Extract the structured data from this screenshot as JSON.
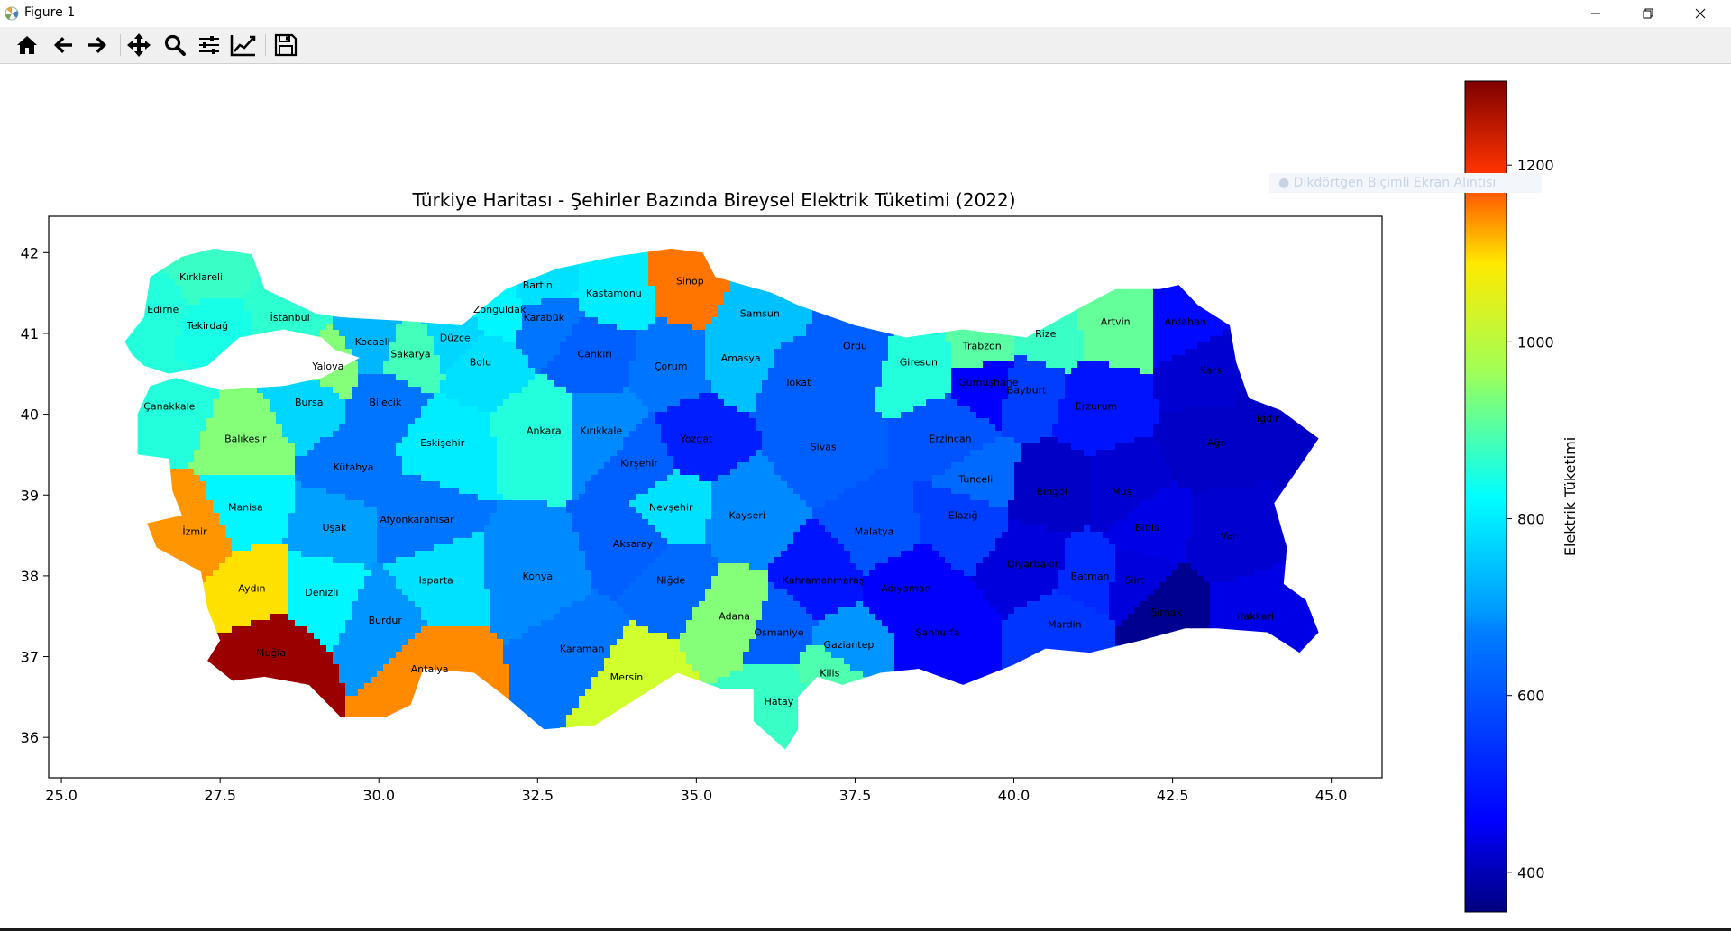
{
  "window": {
    "title": "Figure 1"
  },
  "toolbar": {
    "buttons": [
      {
        "name": "home-button",
        "icon": "home-icon"
      },
      {
        "name": "back-button",
        "icon": "arrow-left-icon"
      },
      {
        "name": "forward-button",
        "icon": "arrow-right-icon"
      },
      {
        "name": "pan-button",
        "icon": "move-icon"
      },
      {
        "name": "zoom-button",
        "icon": "magnifier-icon"
      },
      {
        "name": "configure-subplots-button",
        "icon": "sliders-icon"
      },
      {
        "name": "edit-axis-button",
        "icon": "line-chart-icon"
      },
      {
        "name": "save-button",
        "icon": "floppy-disk-icon"
      }
    ]
  },
  "overlay": {
    "ghost_text": "Dikdörtgen Biçimli Ekran Alıntısı"
  },
  "chart_data": {
    "type": "choropleth",
    "title": "Türkiye Haritası - Şehirler Bazında Bireysel Elektrik Tüketimi (2022)",
    "xlim": [
      24.8,
      45.8
    ],
    "ylim": [
      35.5,
      42.45
    ],
    "xticks": [
      25.0,
      27.5,
      30.0,
      32.5,
      35.0,
      37.5,
      40.0,
      42.5,
      45.0
    ],
    "yticks": [
      36,
      37,
      38,
      39,
      40,
      41,
      42
    ],
    "colorbar": {
      "label": "Elektrik Tüketimi",
      "colormap": "jet",
      "range": [
        355,
        1295
      ],
      "ticks": [
        400,
        600,
        800,
        1000,
        1200
      ]
    },
    "cities": [
      {
        "name": "Kırklareli",
        "x": 27.2,
        "y": 41.7,
        "value": 760
      },
      {
        "name": "Edirne",
        "x": 26.6,
        "y": 41.3,
        "value": 740
      },
      {
        "name": "Tekirdağ",
        "x": 27.3,
        "y": 41.1,
        "value": 730
      },
      {
        "name": "İstanbul",
        "x": 28.6,
        "y": 41.2,
        "value": 750
      },
      {
        "name": "Yalova",
        "x": 29.2,
        "y": 40.6,
        "value": 830
      },
      {
        "name": "Kocaeli",
        "x": 29.9,
        "y": 40.9,
        "value": 640
      },
      {
        "name": "Sakarya",
        "x": 30.5,
        "y": 40.75,
        "value": 770
      },
      {
        "name": "Düzce",
        "x": 31.2,
        "y": 40.95,
        "value": 670
      },
      {
        "name": "Zonguldak",
        "x": 31.9,
        "y": 41.3,
        "value": 700
      },
      {
        "name": "Bartın",
        "x": 32.5,
        "y": 41.6,
        "value": 680
      },
      {
        "name": "Karabük",
        "x": 32.6,
        "y": 41.2,
        "value": 580
      },
      {
        "name": "Kastamonu",
        "x": 33.7,
        "y": 41.5,
        "value": 690
      },
      {
        "name": "Sinop",
        "x": 34.9,
        "y": 41.65,
        "value": 1070
      },
      {
        "name": "Samsun",
        "x": 36.0,
        "y": 41.25,
        "value": 650
      },
      {
        "name": "Bolu",
        "x": 31.6,
        "y": 40.65,
        "value": 680
      },
      {
        "name": "Çankırı",
        "x": 33.4,
        "y": 40.75,
        "value": 560
      },
      {
        "name": "Çorum",
        "x": 34.6,
        "y": 40.6,
        "value": 580
      },
      {
        "name": "Amasya",
        "x": 35.7,
        "y": 40.7,
        "value": 650
      },
      {
        "name": "Tokat",
        "x": 36.6,
        "y": 40.4,
        "value": 560
      },
      {
        "name": "Ordu",
        "x": 37.5,
        "y": 40.85,
        "value": 560
      },
      {
        "name": "Giresun",
        "x": 38.5,
        "y": 40.65,
        "value": 740
      },
      {
        "name": "Trabzon",
        "x": 39.5,
        "y": 40.85,
        "value": 790
      },
      {
        "name": "Rize",
        "x": 40.5,
        "y": 41.0,
        "value": 760
      },
      {
        "name": "Artvin",
        "x": 41.6,
        "y": 41.15,
        "value": 800
      },
      {
        "name": "Ardahan",
        "x": 42.7,
        "y": 41.15,
        "value": 480
      },
      {
        "name": "Gümüşhane",
        "x": 39.6,
        "y": 40.4,
        "value": 470
      },
      {
        "name": "Bayburt",
        "x": 40.2,
        "y": 40.3,
        "value": 530
      },
      {
        "name": "Erzurum",
        "x": 41.3,
        "y": 40.1,
        "value": 490
      },
      {
        "name": "Kars",
        "x": 43.1,
        "y": 40.55,
        "value": 430
      },
      {
        "name": "Iğdır",
        "x": 44.0,
        "y": 39.95,
        "value": 420
      },
      {
        "name": "Ağrı",
        "x": 43.2,
        "y": 39.65,
        "value": 420
      },
      {
        "name": "Çanakkale",
        "x": 26.7,
        "y": 40.1,
        "value": 740
      },
      {
        "name": "Balıkesir",
        "x": 27.9,
        "y": 39.7,
        "value": 830
      },
      {
        "name": "Bursa",
        "x": 28.9,
        "y": 40.15,
        "value": 670
      },
      {
        "name": "Bilecik",
        "x": 30.1,
        "y": 40.15,
        "value": 580
      },
      {
        "name": "Eskişehir",
        "x": 31.0,
        "y": 39.65,
        "value": 690
      },
      {
        "name": "Ankara",
        "x": 32.6,
        "y": 39.8,
        "value": 740
      },
      {
        "name": "Kırıkkale",
        "x": 33.5,
        "y": 39.8,
        "value": 600
      },
      {
        "name": "Yozgat",
        "x": 35.0,
        "y": 39.7,
        "value": 500
      },
      {
        "name": "Sivas",
        "x": 37.0,
        "y": 39.6,
        "value": 560
      },
      {
        "name": "Erzincan",
        "x": 39.0,
        "y": 39.7,
        "value": 550
      },
      {
        "name": "Tunceli",
        "x": 39.4,
        "y": 39.2,
        "value": 570
      },
      {
        "name": "Bingöl",
        "x": 40.6,
        "y": 39.05,
        "value": 420
      },
      {
        "name": "Muş",
        "x": 41.7,
        "y": 39.05,
        "value": 430
      },
      {
        "name": "Kütahya",
        "x": 29.6,
        "y": 39.35,
        "value": 580
      },
      {
        "name": "Kırşehir",
        "x": 34.1,
        "y": 39.4,
        "value": 560
      },
      {
        "name": "Nevşehir",
        "x": 34.6,
        "y": 38.85,
        "value": 680
      },
      {
        "name": "Kayseri",
        "x": 35.8,
        "y": 38.75,
        "value": 600
      },
      {
        "name": "Malatya",
        "x": 37.8,
        "y": 38.55,
        "value": 550
      },
      {
        "name": "Elazığ",
        "x": 39.2,
        "y": 38.75,
        "value": 530
      },
      {
        "name": "Manisa",
        "x": 27.9,
        "y": 38.85,
        "value": 700
      },
      {
        "name": "Uşak",
        "x": 29.3,
        "y": 38.6,
        "value": 620
      },
      {
        "name": "Afyonkarahisar",
        "x": 30.6,
        "y": 38.7,
        "value": 580
      },
      {
        "name": "İzmir",
        "x": 27.1,
        "y": 38.55,
        "value": 1040
      },
      {
        "name": "Aksaray",
        "x": 34.0,
        "y": 38.4,
        "value": 560
      },
      {
        "name": "Bitlis",
        "x": 42.1,
        "y": 38.6,
        "value": 450
      },
      {
        "name": "Van",
        "x": 43.4,
        "y": 38.5,
        "value": 430
      },
      {
        "name": "Konya",
        "x": 32.5,
        "y": 38.0,
        "value": 600
      },
      {
        "name": "Niğde",
        "x": 34.6,
        "y": 37.95,
        "value": 570
      },
      {
        "name": "Kahramanmaraş",
        "x": 37.0,
        "y": 37.95,
        "value": 490
      },
      {
        "name": "Adıyaman",
        "x": 38.3,
        "y": 37.85,
        "value": 470
      },
      {
        "name": "Diyarbakır",
        "x": 40.3,
        "y": 38.15,
        "value": 440
      },
      {
        "name": "Batman",
        "x": 41.2,
        "y": 38.0,
        "value": 510
      },
      {
        "name": "Siirt",
        "x": 41.9,
        "y": 37.95,
        "value": 440
      },
      {
        "name": "Aydın",
        "x": 28.0,
        "y": 37.85,
        "value": 970
      },
      {
        "name": "Denizli",
        "x": 29.1,
        "y": 37.8,
        "value": 700
      },
      {
        "name": "Isparta",
        "x": 30.9,
        "y": 37.95,
        "value": 680
      },
      {
        "name": "Burdur",
        "x": 30.1,
        "y": 37.45,
        "value": 610
      },
      {
        "name": "Adana",
        "x": 35.6,
        "y": 37.5,
        "value": 830
      },
      {
        "name": "Osmaniye",
        "x": 36.3,
        "y": 37.3,
        "value": 560
      },
      {
        "name": "Gaziantep",
        "x": 37.4,
        "y": 37.15,
        "value": 610
      },
      {
        "name": "Kilis",
        "x": 37.1,
        "y": 36.8,
        "value": 780
      },
      {
        "name": "Şanlıurfa",
        "x": 38.8,
        "y": 37.3,
        "value": 470
      },
      {
        "name": "Mardin",
        "x": 40.8,
        "y": 37.4,
        "value": 520
      },
      {
        "name": "Şırnak",
        "x": 42.4,
        "y": 37.55,
        "value": 370
      },
      {
        "name": "Hakkari",
        "x": 43.8,
        "y": 37.5,
        "value": 450
      },
      {
        "name": "Muğla",
        "x": 28.3,
        "y": 37.05,
        "value": 1270
      },
      {
        "name": "Antalya",
        "x": 30.8,
        "y": 36.85,
        "value": 1050
      },
      {
        "name": "Karaman",
        "x": 33.2,
        "y": 37.1,
        "value": 580
      },
      {
        "name": "Mersin",
        "x": 33.9,
        "y": 36.75,
        "value": 900
      },
      {
        "name": "Hatay",
        "x": 36.3,
        "y": 36.45,
        "value": 760
      }
    ]
  }
}
